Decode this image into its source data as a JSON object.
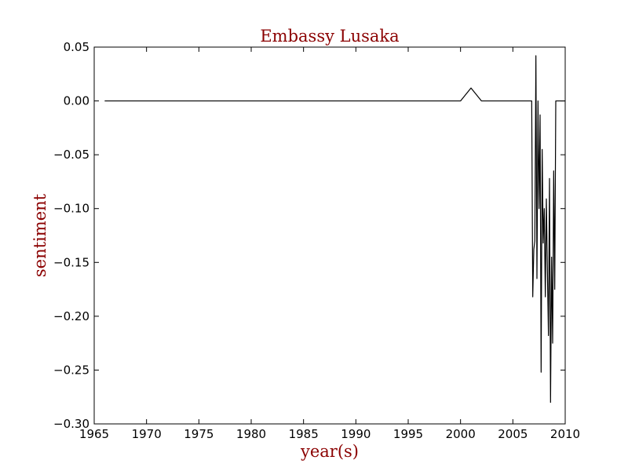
{
  "chart_data": {
    "type": "line",
    "title": "Embassy Lusaka",
    "xlabel": "year(s)",
    "ylabel": "sentiment",
    "xlim": [
      1965,
      2010
    ],
    "ylim": [
      -0.3,
      0.05
    ],
    "x_ticks": [
      "1965",
      "1970",
      "1975",
      "1980",
      "1985",
      "1990",
      "1995",
      "2000",
      "2005",
      "2010"
    ],
    "y_ticks": [
      "0.05",
      "0.00",
      "−0.05",
      "−0.10",
      "−0.15",
      "−0.20",
      "−0.25",
      "−0.30"
    ],
    "grid": false,
    "legend": "none",
    "series": [
      {
        "color": "#000000",
        "x": [
          1966.0,
          2000.0,
          2001.0,
          2002.0,
          2006.8,
          2006.9,
          2007.0,
          2007.1,
          2007.2,
          2007.3,
          2007.4,
          2007.5,
          2007.6,
          2007.7,
          2007.8,
          2007.9,
          2008.0,
          2008.1,
          2008.2,
          2008.3,
          2008.4,
          2008.5,
          2008.6,
          2008.7,
          2008.8,
          2008.9,
          2009.0,
          2009.1,
          2009.2,
          2009.3,
          2009.4,
          2009.5,
          2009.6,
          2009.7,
          2009.8,
          2009.9,
          2010.0
        ],
        "y": [
          0.0,
          0.0,
          0.012,
          0.0,
          0.0,
          -0.182,
          -0.138,
          -0.13,
          0.042,
          -0.165,
          0.0,
          -0.1,
          -0.013,
          -0.252,
          -0.045,
          -0.132,
          -0.1,
          -0.182,
          -0.091,
          -0.158,
          -0.218,
          -0.072,
          -0.28,
          -0.145,
          -0.225,
          -0.065,
          -0.175,
          0.0,
          0.0,
          0.0,
          0.0,
          0.0,
          0.0,
          0.0,
          0.0,
          0.0,
          0.0
        ]
      }
    ]
  },
  "colors": {
    "title": "#8b0000",
    "axis_label": "#8b0000",
    "line": "#000000",
    "frame": "#000000"
  }
}
